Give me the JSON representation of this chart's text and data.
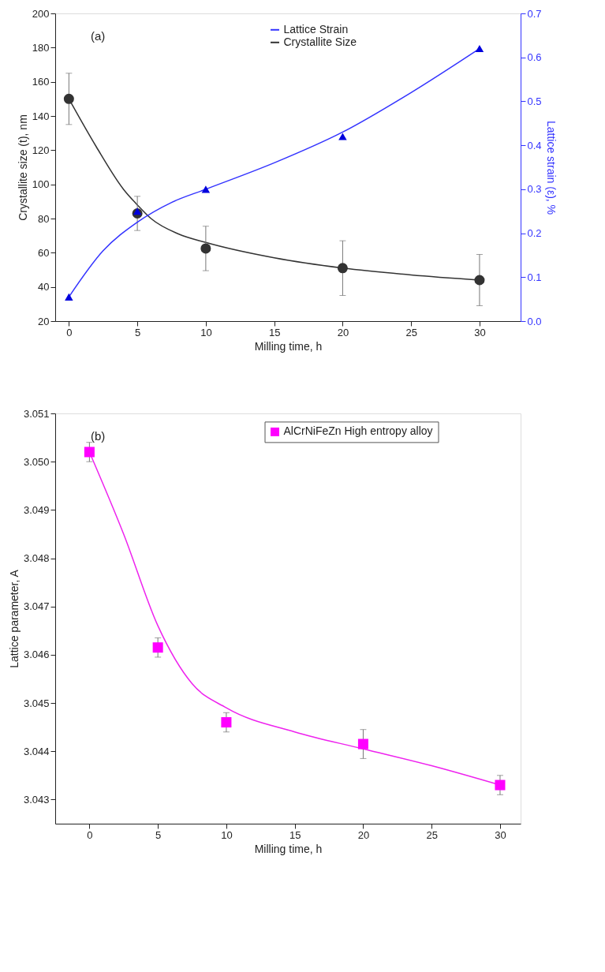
{
  "chart_data": [
    {
      "type": "line",
      "annotations": [
        "(a)"
      ],
      "xlabel": "Milling time, h",
      "ylabel": "Crystallite size (t), nm",
      "y2label": "Lattice strain (ε), %",
      "xlim": [
        -1,
        33
      ],
      "xticks": [
        0,
        5,
        10,
        15,
        20,
        25,
        30
      ],
      "ylim": [
        20,
        200
      ],
      "yticks": [
        20,
        40,
        60,
        80,
        100,
        120,
        140,
        160,
        180,
        200
      ],
      "y2lim": [
        0,
        0.7
      ],
      "y2ticks": [
        {
          "value": 0,
          "label": "0.0"
        },
        0.1,
        0.2,
        0.3,
        0.4,
        0.5,
        0.6,
        0.7
      ],
      "grid": false,
      "legend": "top right",
      "line_style": "solid",
      "series": [
        {
          "name": "Lattice Strain",
          "axis": "y2",
          "color": "#3333ff",
          "x": [
            0,
            2.5,
            5,
            7.5,
            10,
            15,
            20,
            25,
            30
          ],
          "values": [
            0.055,
            0.16,
            0.225,
            0.27,
            0.3,
            0.36,
            0.43,
            0.52,
            0.62
          ]
        },
        {
          "name": "Crystallite Size",
          "color": "#333333",
          "x": [
            0,
            2,
            4,
            5,
            6,
            8,
            10,
            15,
            20,
            25,
            30
          ],
          "values": [
            150,
            122,
            97,
            88,
            80,
            71,
            66,
            57,
            51,
            47,
            44
          ]
        },
        {
          "type": "scatter",
          "marker": "circle",
          "color": "#333333",
          "x": [
            0,
            5,
            10,
            20,
            30
          ],
          "values": [
            150,
            83,
            62.5,
            51,
            44
          ],
          "errors": [
            15,
            10,
            13,
            16,
            15
          ]
        },
        {
          "type": "scatter",
          "marker": "triangle",
          "axis": "y2",
          "color": "#0000dd",
          "x": [
            0,
            5,
            10,
            20,
            30
          ],
          "values": [
            0.055,
            0.25,
            0.3,
            0.42,
            0.62
          ]
        }
      ]
    },
    {
      "type": "line",
      "annotations": [
        "(b)"
      ],
      "xlabel": "Milling time, h",
      "ylabel": "Lattice parameter, A",
      "xlim": [
        -2.5,
        31.5
      ],
      "xticks": [
        0,
        5,
        10,
        15,
        20,
        25,
        30
      ],
      "ylim": [
        3.0425,
        3.051
      ],
      "yticks": [
        3.043,
        3.044,
        3.045,
        3.046,
        3.047,
        3.048,
        3.049,
        {
          "value": 3.05,
          "label": "3.050"
        },
        3.051
      ],
      "grid": false,
      "legend": "top right",
      "line_style": "solid",
      "series": [
        {
          "color": "#ee22ee",
          "x": [
            0,
            2.5,
            5,
            7.5,
            10,
            15,
            20,
            25,
            30
          ],
          "values": [
            3.0502,
            3.0485,
            3.0466,
            3.0454,
            3.0449,
            3.0444,
            3.04405,
            3.0437,
            3.0433
          ]
        },
        {
          "name": "AlCrNiFeZn High entropy alloy",
          "type": "scatter",
          "marker": "square",
          "color": "#ff00ff",
          "x": [
            0,
            5,
            10,
            20,
            30
          ],
          "values": [
            3.0502,
            3.04615,
            3.0446,
            3.04415,
            3.0433
          ],
          "errors": [
            0.0002,
            0.0002,
            0.0002,
            0.0003,
            0.0002
          ]
        }
      ]
    }
  ]
}
